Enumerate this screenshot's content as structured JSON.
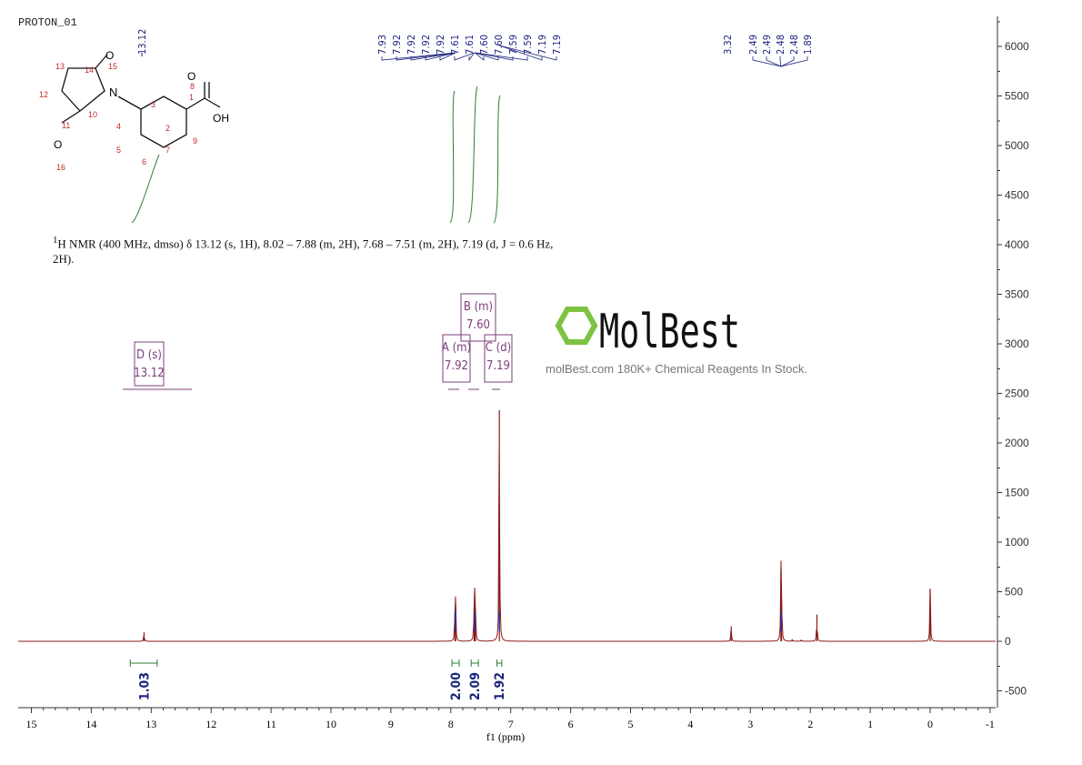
{
  "title": "PROTON_01",
  "nmr_description": "H NMR (400 MHz, dmso) δ 13.12 (s, 1H), 8.02 – 7.88 (m, 2H), 7.68 – 7.51 (m, 2H), 7.19 (d, J = 0.6 Hz, 2H).",
  "nmr_superscript": "1",
  "watermark": {
    "logo_text": "MolBest",
    "tagline": "molBest.com 180K+ Chemical Reagents In Stock.",
    "logo_color": "#7dc242"
  },
  "structure": {
    "atom_numbers": [
      "1",
      "2",
      "3",
      "4",
      "5",
      "6",
      "7",
      "8",
      "9",
      "10",
      "11",
      "12",
      "13",
      "14",
      "15",
      "16"
    ],
    "atoms": [
      "O",
      "OH",
      "N",
      "O",
      "O"
    ]
  },
  "colors": {
    "spectrum": "#8b1a1a",
    "peak_labels": "#1a237e",
    "integral": "#2e7d32",
    "multiplet": "#7b3f7b",
    "axis": "#333333"
  },
  "chart_data": {
    "type": "line",
    "xlabel": "f1 (ppm)",
    "ylabel": "",
    "xlim": [
      15.2,
      -1
    ],
    "ylim": [
      -650,
      6250
    ],
    "x_ticks": [
      "15",
      "14",
      "13",
      "12",
      "11",
      "10",
      "9",
      "8",
      "7",
      "6",
      "5",
      "4",
      "3",
      "2",
      "1",
      "0",
      "-1"
    ],
    "y_ticks": [
      "-500",
      "0",
      "500",
      "1000",
      "1500",
      "2000",
      "2500",
      "3000",
      "3500",
      "4000",
      "4500",
      "5000",
      "5500",
      "6000"
    ],
    "grid": false,
    "peaks": [
      {
        "ppm": 13.12,
        "height": 90
      },
      {
        "ppm": 7.93,
        "height": 300
      },
      {
        "ppm": 7.92,
        "height": 370
      },
      {
        "ppm": 7.61,
        "height": 320
      },
      {
        "ppm": 7.6,
        "height": 430
      },
      {
        "ppm": 7.59,
        "height": 250
      },
      {
        "ppm": 7.19,
        "height": 2330
      },
      {
        "ppm": 3.32,
        "height": 150
      },
      {
        "ppm": 2.49,
        "height": 720
      },
      {
        "ppm": 2.48,
        "height": 400
      },
      {
        "ppm": 2.3,
        "height": 20
      },
      {
        "ppm": 2.15,
        "height": 15
      },
      {
        "ppm": 1.89,
        "height": 270
      },
      {
        "ppm": 0.0,
        "height": 530
      }
    ],
    "peak_labels": {
      "group1": [
        "7.93",
        "7.92",
        "7.92",
        "7.92",
        "7.92",
        "7.61",
        "7.61",
        "7.60",
        "7.60",
        "7.59",
        "7.59",
        "7.19",
        "7.19"
      ],
      "single": [
        "13.12",
        "3.32"
      ],
      "group2": [
        "2.49",
        "2.49",
        "2.48",
        "2.48",
        "1.89"
      ]
    },
    "integrals": [
      {
        "from": 13.35,
        "to": 12.9,
        "value": "1.03",
        "center": 13.12
      },
      {
        "from": 7.98,
        "to": 7.86,
        "value": "2.00",
        "center": 7.92
      },
      {
        "from": 7.66,
        "to": 7.54,
        "value": "2.09",
        "center": 7.6
      },
      {
        "from": 7.23,
        "to": 7.15,
        "value": "1.92",
        "center": 7.19
      }
    ],
    "multiplets": [
      {
        "letter": "A (m)",
        "shift": "7.92",
        "ppm": 7.92
      },
      {
        "letter": "B (m)",
        "shift": "7.60",
        "ppm": 7.6
      },
      {
        "letter": "C (d)",
        "shift": "7.19",
        "ppm": 7.19
      },
      {
        "letter": "D (s)",
        "shift": "13.12",
        "ppm": 13.12
      }
    ]
  }
}
